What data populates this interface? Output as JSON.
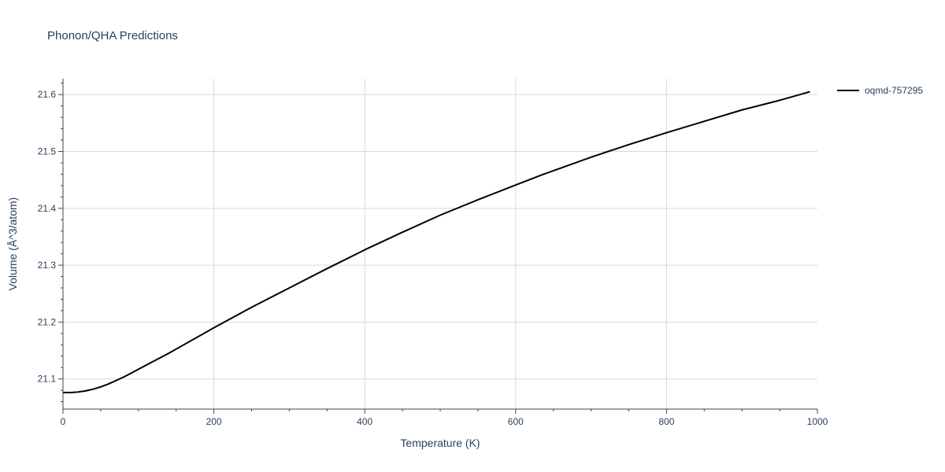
{
  "chart_data": {
    "type": "line",
    "title": "Phonon/QHA Predictions",
    "xlabel": "Temperature (K)",
    "ylabel": "Volume (Å^3/atom)",
    "xlim": [
      0,
      1000
    ],
    "ylim": [
      21.047,
      21.628
    ],
    "x_ticks": [
      0,
      200,
      400,
      600,
      800,
      1000
    ],
    "y_ticks": [
      21.1,
      21.2,
      21.3,
      21.4,
      21.5,
      21.6
    ],
    "grid": true,
    "legend_position": "top-right",
    "series": [
      {
        "name": "oqmd-757295",
        "color": "#000000",
        "x": [
          0,
          10,
          20,
          30,
          40,
          50,
          60,
          70,
          80,
          90,
          100,
          120,
          140,
          160,
          180,
          200,
          250,
          300,
          350,
          400,
          450,
          500,
          550,
          600,
          635,
          700,
          750,
          800,
          850,
          900,
          950,
          990
        ],
        "y": [
          21.076,
          21.076,
          21.077,
          21.079,
          21.082,
          21.086,
          21.091,
          21.097,
          21.103,
          21.11,
          21.117,
          21.131,
          21.145,
          21.16,
          21.175,
          21.19,
          21.226,
          21.26,
          21.294,
          21.327,
          21.358,
          21.388,
          21.415,
          21.441,
          21.459,
          21.49,
          21.512,
          21.533,
          21.553,
          21.573,
          21.59,
          21.605
        ]
      }
    ]
  }
}
